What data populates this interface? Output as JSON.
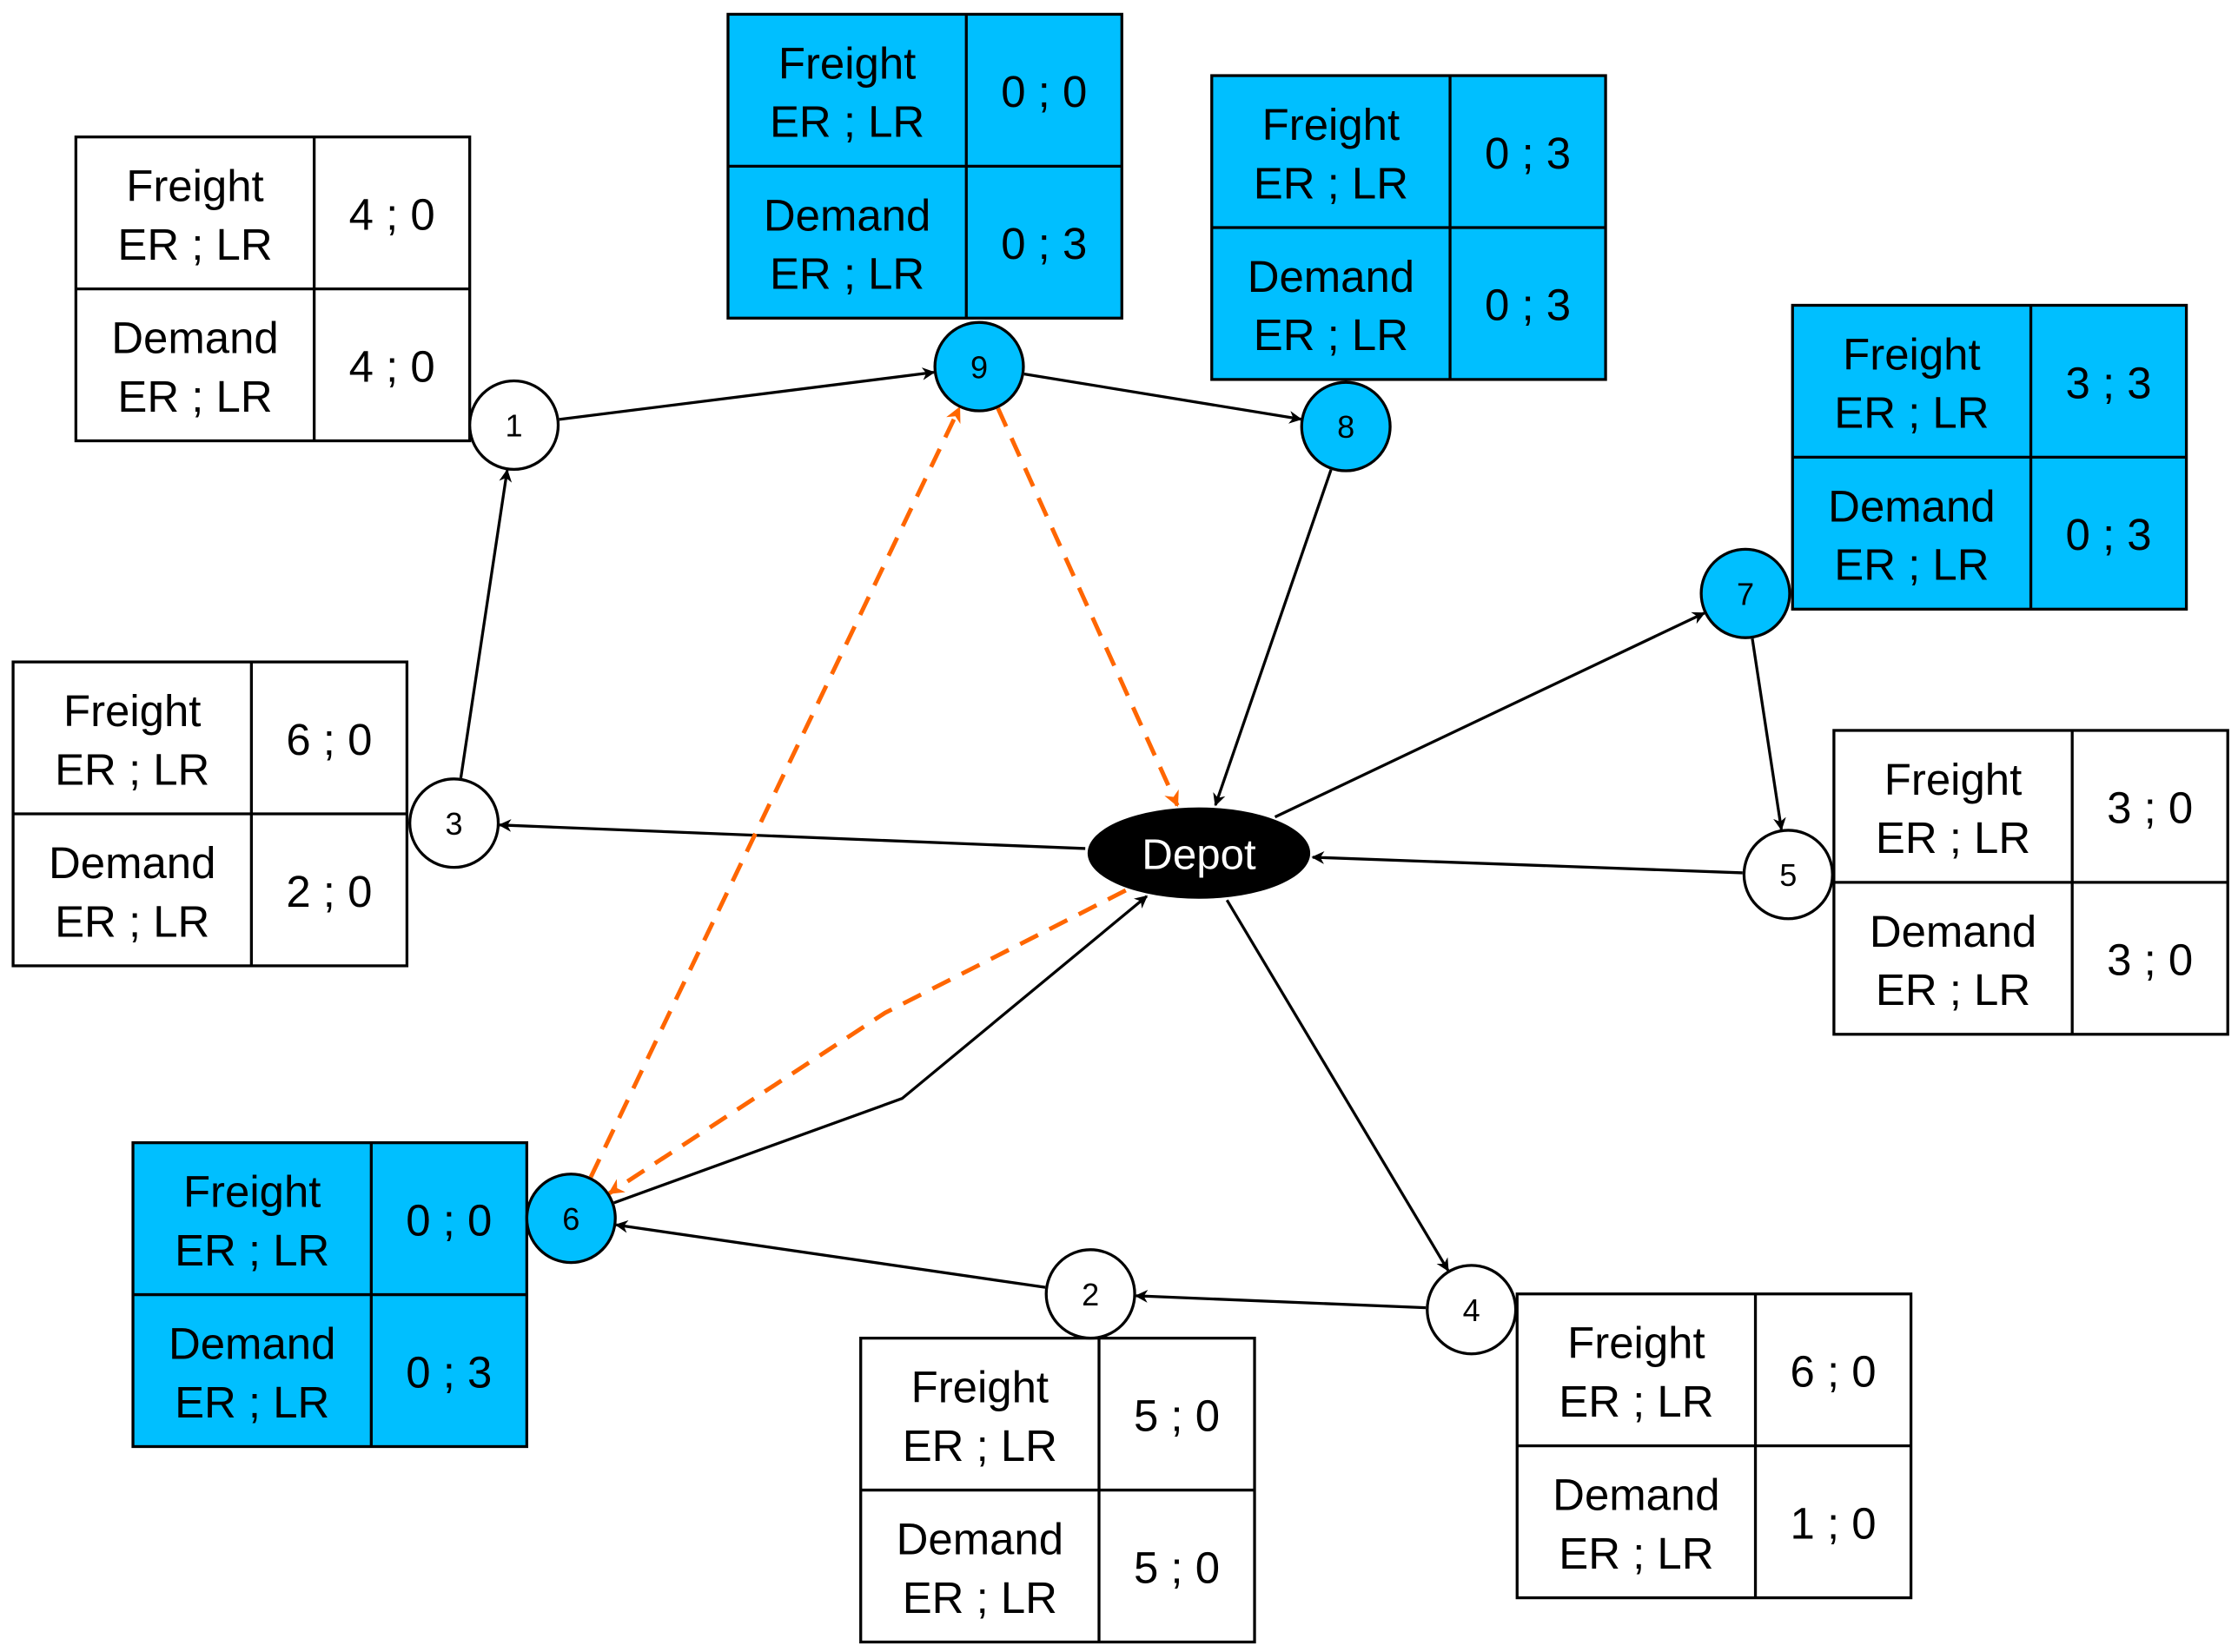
{
  "colors": {
    "highlight": "#00BFFF",
    "edge": "#000000",
    "alt_route": "#FF6600",
    "depot": "#000000"
  },
  "depot": {
    "label": "Depot"
  },
  "row_labels": {
    "freight": "Freight",
    "demand": "Demand",
    "sub": "ER ; LR"
  },
  "nodes": [
    {
      "id": "1",
      "highlighted": false,
      "freight": "4 ; 0",
      "demand": "4 ; 0"
    },
    {
      "id": "9",
      "highlighted": true,
      "freight": "0 ; 0",
      "demand": "0 ; 3"
    },
    {
      "id": "8",
      "highlighted": true,
      "freight": "0 ; 3",
      "demand": "0 ; 3"
    },
    {
      "id": "7",
      "highlighted": true,
      "freight": "3 ; 3",
      "demand": "0 ; 3"
    },
    {
      "id": "5",
      "highlighted": false,
      "freight": "3 ; 0",
      "demand": "3 ; 0"
    },
    {
      "id": "4",
      "highlighted": false,
      "freight": "6 ; 0",
      "demand": "1 ; 0"
    },
    {
      "id": "2",
      "highlighted": false,
      "freight": "5 ; 0",
      "demand": "5 ; 0"
    },
    {
      "id": "6",
      "highlighted": true,
      "freight": "0 ; 0",
      "demand": "0 ; 3"
    },
    {
      "id": "3",
      "highlighted": false,
      "freight": "6 ; 0",
      "demand": "2 ; 0"
    }
  ],
  "edges": [
    {
      "from": "3",
      "to": "1",
      "style": "solid"
    },
    {
      "from": "1",
      "to": "9",
      "style": "solid"
    },
    {
      "from": "9",
      "to": "8",
      "style": "solid"
    },
    {
      "from": "8",
      "to": "Depot",
      "style": "solid"
    },
    {
      "from": "Depot",
      "to": "7",
      "style": "solid"
    },
    {
      "from": "7",
      "to": "5",
      "style": "solid"
    },
    {
      "from": "5",
      "to": "Depot",
      "style": "solid"
    },
    {
      "from": "Depot",
      "to": "4",
      "style": "solid"
    },
    {
      "from": "4",
      "to": "2",
      "style": "solid"
    },
    {
      "from": "2",
      "to": "6",
      "style": "solid"
    },
    {
      "from": "6",
      "to": "Depot",
      "style": "solid"
    },
    {
      "from": "Depot",
      "to": "3",
      "style": "solid"
    },
    {
      "from": "6",
      "to": "9",
      "style": "dashed"
    },
    {
      "from": "9",
      "to": "Depot",
      "style": "dashed"
    },
    {
      "from": "Depot",
      "to": "6",
      "style": "dashed"
    }
  ]
}
